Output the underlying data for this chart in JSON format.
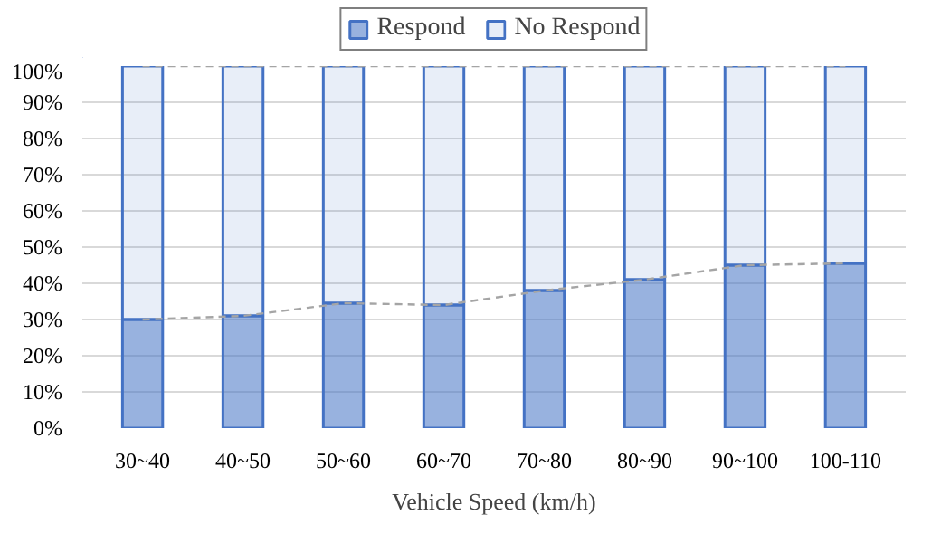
{
  "chart_data": {
    "type": "bar",
    "stacked": true,
    "xlabel": "Vehicle Speed (km/h)",
    "categories": [
      "30~40",
      "40~50",
      "50~60",
      "60~70",
      "70~80",
      "80~90",
      "90~100",
      "100-110"
    ],
    "series": [
      {
        "name": "Respond",
        "color": "#4472c4",
        "values": [
          30,
          31,
          34.5,
          34,
          38,
          41,
          45,
          45.5
        ]
      },
      {
        "name": "No Respond",
        "color": "#4472c4",
        "values": [
          70,
          69,
          65.5,
          66,
          62,
          59,
          55,
          54.5
        ]
      },
      {
        "type": "line",
        "color": "#a5a5a5",
        "line_style": "dashed",
        "values": [
          30,
          31,
          34.5,
          34,
          38,
          41,
          45,
          45.5
        ]
      },
      {
        "type": "line",
        "color": "#a5a5a5",
        "line_style": "dashed",
        "values": [
          100,
          100,
          100,
          100,
          100,
          100,
          100,
          100
        ]
      }
    ],
    "ylim": [
      0,
      100
    ],
    "yticks": [
      {
        "value": 0,
        "label": "0%"
      },
      {
        "value": 10,
        "label": "10%"
      },
      {
        "value": 20,
        "label": "20%"
      },
      {
        "value": 30,
        "label": "30%"
      },
      {
        "value": 40,
        "label": "40%"
      },
      {
        "value": 50,
        "label": "50%"
      },
      {
        "value": 60,
        "label": "60%"
      },
      {
        "value": 70,
        "label": "70%"
      },
      {
        "value": 80,
        "label": "80%"
      },
      {
        "value": 90,
        "label": "90%"
      },
      {
        "value": 100,
        "label": "100%"
      }
    ],
    "grid": "y",
    "legend": "top"
  }
}
